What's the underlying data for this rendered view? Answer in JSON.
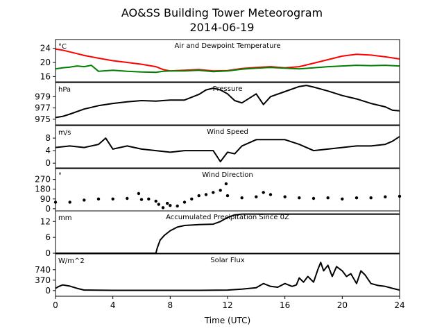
{
  "figure": {
    "title": "AO&SS Building Tower Meteorogram",
    "subtitle": "2014-06-19",
    "xlabel": "Time (UTC)"
  },
  "chart_data": [
    {
      "type": "line",
      "title": "Air and Dewpoint Temperature",
      "unit_label": "°C",
      "ylim": [
        14.5,
        26.5
      ],
      "yticks": [
        16,
        20,
        24
      ],
      "xlim": [
        0,
        24
      ],
      "series": [
        {
          "color": "#ff0000",
          "x": [
            0,
            0.5,
            1,
            1.5,
            2,
            3,
            4,
            5,
            6,
            7,
            7.5,
            8,
            9,
            10,
            11,
            12,
            13,
            14,
            15,
            16,
            17,
            18,
            19,
            20,
            21,
            22,
            23,
            24
          ],
          "y": [
            23.8,
            23.5,
            23,
            22.5,
            22,
            21.2,
            20.5,
            20,
            19.5,
            18.8,
            18,
            17.6,
            17.8,
            18,
            17.6,
            17.7,
            18.3,
            18.6,
            18.8,
            18.5,
            18.8,
            19.8,
            20.8,
            21.8,
            22.3,
            22.1,
            21.6,
            21
          ]
        },
        {
          "color": "#008000",
          "x": [
            0,
            0.5,
            1,
            1.5,
            2,
            2.5,
            3,
            4,
            5,
            6,
            7,
            7.5,
            8,
            9,
            10,
            11,
            12,
            13,
            14,
            15,
            16,
            17,
            18,
            19,
            20,
            21,
            22,
            23,
            24
          ],
          "y": [
            18.2,
            18.5,
            18.7,
            19,
            18.8,
            19.2,
            17.5,
            17.8,
            17.5,
            17.3,
            17.2,
            17.5,
            17.6,
            17.6,
            17.8,
            17.4,
            17.6,
            18.1,
            18.4,
            18.6,
            18.4,
            18.2,
            18.5,
            18.8,
            19,
            19.2,
            19.1,
            19.2,
            19
          ]
        }
      ]
    },
    {
      "type": "line",
      "title": "Pressure",
      "unit_label": "hPa",
      "ylim": [
        974,
        981.5
      ],
      "yticks": [
        975,
        977,
        979
      ],
      "xlim": [
        0,
        24
      ],
      "series": [
        {
          "color": "#000000",
          "x": [
            0,
            0.5,
            1,
            2,
            3,
            4,
            5,
            6,
            7,
            8,
            9,
            10,
            10.5,
            11,
            11.5,
            12,
            12.5,
            13,
            13.5,
            14,
            14.5,
            15,
            16,
            17,
            17.5,
            18,
            19,
            20,
            21,
            22,
            23,
            23.5,
            24
          ],
          "y": [
            975.3,
            975.5,
            975.9,
            976.8,
            977.4,
            977.8,
            978.1,
            978.3,
            978.2,
            978.4,
            978.4,
            979.4,
            980.2,
            980.5,
            980.2,
            979.5,
            978.3,
            977.9,
            978.7,
            979.5,
            977.6,
            979,
            979.9,
            980.8,
            981,
            980.7,
            980,
            979.2,
            978.6,
            977.8,
            977.2,
            976.6,
            976.5
          ]
        }
      ]
    },
    {
      "type": "line",
      "title": "Wind Speed",
      "unit_label": "m/s",
      "ylim": [
        -1.5,
        12
      ],
      "yticks": [
        0,
        4,
        8
      ],
      "xlim": [
        0,
        24
      ],
      "series": [
        {
          "color": "#000000",
          "x": [
            0,
            1,
            2,
            3,
            3.5,
            4,
            5,
            6,
            7,
            8,
            9,
            10,
            11,
            11.5,
            12,
            12.5,
            13,
            14,
            15,
            16,
            17,
            18,
            19,
            20,
            21,
            22,
            23,
            23.5,
            24
          ],
          "y": [
            5,
            5.5,
            5,
            6,
            8,
            4.5,
            5.5,
            4.5,
            4,
            3.5,
            4,
            4,
            4,
            0.5,
            3.5,
            3,
            5.5,
            7.5,
            7.5,
            7.5,
            6,
            4,
            4.5,
            5,
            5.5,
            5.5,
            6,
            7,
            8.5
          ]
        }
      ]
    },
    {
      "type": "scatter",
      "title": "Wind Direction",
      "unit_label": "°",
      "ylim": [
        -20,
        370
      ],
      "yticks": [
        0,
        90,
        180,
        270
      ],
      "xlim": [
        0,
        24
      ],
      "series": [
        {
          "color": "#000000",
          "x": [
            0,
            1,
            2,
            3,
            4,
            5,
            5.8,
            6,
            6.5,
            7,
            7.2,
            7.5,
            7.8,
            8,
            8.5,
            9,
            9.5,
            10,
            10.5,
            11,
            11.5,
            11.9,
            12,
            13,
            14,
            14.5,
            15,
            16,
            17,
            18,
            19,
            20,
            21,
            22,
            23,
            24
          ],
          "y": [
            60,
            60,
            80,
            90,
            90,
            95,
            140,
            85,
            90,
            70,
            40,
            10,
            50,
            30,
            25,
            60,
            90,
            120,
            130,
            150,
            170,
            230,
            120,
            100,
            110,
            150,
            130,
            110,
            100,
            95,
            100,
            90,
            100,
            100,
            110,
            115
          ]
        }
      ]
    },
    {
      "type": "line",
      "title": "Accumulated Precipitation Since 0Z",
      "unit_label": "mm",
      "ylim": [
        0,
        16
      ],
      "yticks": [
        0,
        6,
        12
      ],
      "xlim": [
        0,
        24
      ],
      "series": [
        {
          "color": "#000000",
          "x": [
            0,
            7,
            7.1,
            7.3,
            7.6,
            8,
            8.5,
            9,
            10,
            11,
            11.5,
            12,
            12.5,
            13,
            24
          ],
          "y": [
            0,
            0,
            2,
            5,
            6.8,
            8.5,
            9.9,
            10.5,
            10.8,
            11,
            12,
            13.5,
            14.5,
            14.8,
            14.8
          ]
        }
      ]
    },
    {
      "type": "line",
      "title": "Solar Flux",
      "unit_label": "W/m^2",
      "ylim": [
        -200,
        1300
      ],
      "yticks": [
        0,
        370,
        740
      ],
      "xlim": [
        0,
        24
      ],
      "series": [
        {
          "color": "#000000",
          "x": [
            0,
            0.2,
            0.5,
            1,
            1.5,
            2,
            4,
            6,
            8,
            10,
            12,
            13,
            14,
            14.5,
            15,
            15.5,
            16,
            16.5,
            16.8,
            17,
            17.3,
            17.6,
            18,
            18.3,
            18.5,
            18.7,
            19,
            19.3,
            19.6,
            20,
            20.3,
            20.6,
            21,
            21.3,
            21.6,
            22,
            22.5,
            23,
            23.5,
            24
          ],
          "y": [
            80,
            140,
            200,
            160,
            80,
            20,
            10,
            10,
            10,
            10,
            20,
            50,
            100,
            250,
            150,
            120,
            250,
            150,
            200,
            450,
            300,
            500,
            300,
            750,
            1000,
            700,
            900,
            500,
            850,
            700,
            500,
            600,
            250,
            700,
            550,
            250,
            180,
            150,
            80,
            20
          ]
        }
      ]
    }
  ],
  "xaxis": {
    "ticks": [
      0,
      4,
      8,
      12,
      16,
      20,
      24
    ],
    "lim": [
      0,
      24
    ]
  }
}
